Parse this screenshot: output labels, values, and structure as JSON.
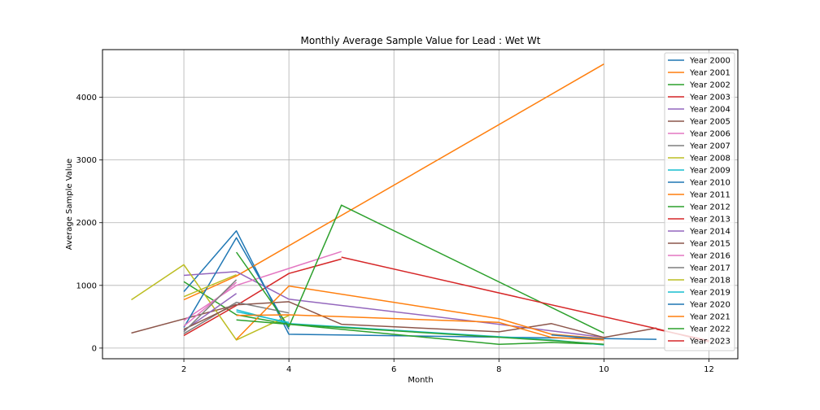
{
  "chart_data": {
    "type": "line",
    "title": "Monthly Average Sample Value for Lead : Wet Wt",
    "xlabel": "Month",
    "ylabel": "Average Sample Value",
    "xlim": [
      0.45,
      12.55
    ],
    "ylim": [
      -170,
      4760
    ],
    "xticks": [
      2,
      4,
      6,
      8,
      10,
      12
    ],
    "yticks": [
      0,
      1000,
      2000,
      3000,
      4000
    ],
    "grid": true,
    "legend": "top-right",
    "series": [
      {
        "name": "Year 2000",
        "color": "#1f77b4",
        "points": [
          [
            2,
            900
          ],
          [
            3,
            1870
          ],
          [
            4,
            220
          ],
          [
            11,
            140
          ]
        ]
      },
      {
        "name": "Year 2001",
        "color": "#ff7f0e",
        "points": [
          [
            2,
            770
          ],
          [
            3,
            1150
          ],
          [
            10,
            4530
          ]
        ]
      },
      {
        "name": "Year 2002",
        "color": "#2ca02c",
        "points": [
          [
            2,
            1060
          ],
          [
            3,
            530
          ],
          [
            4,
            380
          ],
          [
            8,
            60
          ],
          [
            9,
            90
          ],
          [
            10,
            60
          ]
        ]
      },
      {
        "name": "Year 2003",
        "color": "#d62728",
        "points": [
          [
            2,
            200
          ],
          [
            3,
            680
          ],
          [
            4,
            1190
          ],
          [
            5,
            1420
          ]
        ]
      },
      {
        "name": "Year 2004",
        "color": "#9467bd",
        "points": [
          [
            2,
            1160
          ],
          [
            3,
            1220
          ],
          [
            4,
            780
          ],
          [
            8,
            380
          ],
          [
            10,
            170
          ]
        ]
      },
      {
        "name": "Year 2005",
        "color": "#8c564b",
        "points": [
          [
            1,
            240
          ],
          [
            3,
            690
          ],
          [
            4,
            740
          ],
          [
            5,
            380
          ],
          [
            8,
            260
          ],
          [
            9,
            390
          ],
          [
            10,
            170
          ],
          [
            11,
            320
          ]
        ]
      },
      {
        "name": "Year 2006",
        "color": "#e377c2",
        "points": [
          [
            2,
            440
          ],
          [
            3,
            1000
          ],
          [
            4,
            1270
          ],
          [
            5,
            1540
          ]
        ]
      },
      {
        "name": "Year 2007",
        "color": "#7f7f7f",
        "points": [
          [
            2,
            230
          ],
          [
            3,
            730
          ],
          [
            4,
            560
          ]
        ]
      },
      {
        "name": "Year 2008",
        "color": "#bcbd22",
        "points": [
          [
            1,
            770
          ],
          [
            2,
            1330
          ],
          [
            3,
            130
          ],
          [
            4,
            520
          ]
        ]
      },
      {
        "name": "Year 2009",
        "color": "#17becf",
        "points": [
          [
            3,
            610
          ],
          [
            4,
            390
          ],
          [
            9,
            130
          ],
          [
            10,
            50
          ]
        ]
      },
      {
        "name": "Year 2010",
        "color": "#1f77b4",
        "points": [
          [
            2,
            330
          ],
          [
            3,
            1760
          ],
          [
            4,
            300
          ]
        ]
      },
      {
        "name": "Year 2011",
        "color": "#ff7f0e",
        "points": [
          [
            3,
            140
          ],
          [
            4,
            990
          ],
          [
            8,
            470
          ],
          [
            9,
            220
          ],
          [
            10,
            150
          ]
        ]
      },
      {
        "name": "Year 2012",
        "color": "#2ca02c",
        "points": [
          [
            3,
            1530
          ],
          [
            4,
            340
          ],
          [
            5,
            2280
          ],
          [
            10,
            240
          ]
        ]
      },
      {
        "name": "Year 2013",
        "color": "#d62728",
        "points": [
          [
            5,
            1450
          ],
          [
            11,
            310
          ],
          [
            12,
            100
          ]
        ]
      },
      {
        "name": "Year 2014",
        "color": "#9467bd",
        "points": [
          [
            2,
            280
          ],
          [
            3,
            870
          ]
        ]
      },
      {
        "name": "Year 2015",
        "color": "#8c564b",
        "points": [
          [
            2,
            300
          ],
          [
            3,
            700
          ]
        ]
      },
      {
        "name": "Year 2016",
        "color": "#e377c2",
        "points": [
          [
            2,
            350
          ],
          [
            3,
            1050
          ]
        ]
      },
      {
        "name": "Year 2017",
        "color": "#7f7f7f",
        "points": [
          [
            2,
            260
          ],
          [
            3,
            1090
          ]
        ]
      },
      {
        "name": "Year 2018",
        "color": "#bcbd22",
        "points": [
          [
            2,
            820
          ],
          [
            3,
            1170
          ]
        ]
      },
      {
        "name": "Year 2019",
        "color": "#17becf",
        "points": [
          [
            3,
            580
          ],
          [
            4,
            410
          ]
        ]
      },
      {
        "name": "Year 2020",
        "color": "#1f77b4",
        "points": [
          [
            9,
            210
          ],
          [
            10,
            140
          ]
        ]
      },
      {
        "name": "Year 2021",
        "color": "#ff7f0e",
        "points": [
          [
            3,
            520
          ],
          [
            4,
            530
          ],
          [
            8,
            410
          ],
          [
            9,
            170
          ],
          [
            10,
            130
          ]
        ]
      },
      {
        "name": "Year 2022",
        "color": "#2ca02c",
        "points": [
          [
            3,
            450
          ],
          [
            4,
            380
          ],
          [
            9,
            120
          ],
          [
            10,
            60
          ]
        ]
      },
      {
        "name": "Year 2023",
        "color": "#d62728",
        "points": [
          [
            11,
            300
          ],
          [
            12,
            120
          ]
        ]
      }
    ]
  }
}
